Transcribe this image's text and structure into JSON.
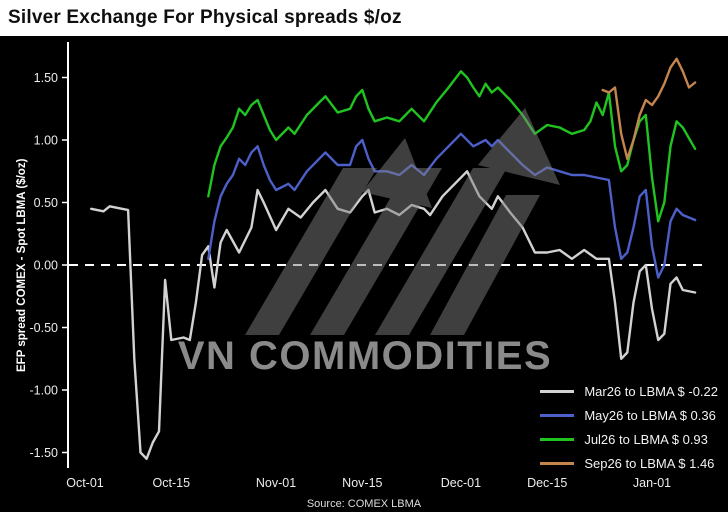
{
  "source": "Source: COMEX LBMA",
  "watermark": "VN COMMODITIES",
  "chart_data": {
    "type": "line",
    "title": "Silver Exchange For Physical spreads $/oz",
    "ylabel": "EFP spread COMEX - Spot LBMA ($/oz)",
    "xlabel": "",
    "ylim": [
      -1.65,
      1.75
    ],
    "grid": false,
    "background": "#000000",
    "zero_line_dashed": true,
    "legend_position": "lower right",
    "x_unit": "days since Oct-01",
    "y_ticks": [
      {
        "label": "1.50",
        "value": 1.5
      },
      {
        "label": "1.00",
        "value": 1.0
      },
      {
        "label": "0.50",
        "value": 0.5
      },
      {
        "label": "0.00",
        "value": 0.0
      },
      {
        "label": "-0.50",
        "value": -0.5
      },
      {
        "label": "-1.00",
        "value": -1.0
      },
      {
        "label": "-1.50",
        "value": -1.5
      }
    ],
    "x_ticks": [
      {
        "label": "Oct-01",
        "day": 0
      },
      {
        "label": "Oct-15",
        "day": 14
      },
      {
        "label": "Nov-01",
        "day": 31
      },
      {
        "label": "Nov-15",
        "day": 45
      },
      {
        "label": "Dec-01",
        "day": 61
      },
      {
        "label": "Dec-15",
        "day": 75
      },
      {
        "label": "Jan-01",
        "day": 92
      }
    ],
    "series": [
      {
        "name": "Mar26",
        "legend_label": "Mar26 to LBMA $ -0.22",
        "last_value": -0.22,
        "color": "#d2d2d2",
        "points": [
          [
            1,
            0.45
          ],
          [
            3,
            0.43
          ],
          [
            4,
            0.47
          ],
          [
            6,
            0.45
          ],
          [
            7,
            0.44
          ],
          [
            8,
            -0.75
          ],
          [
            9,
            -1.5
          ],
          [
            10,
            -1.55
          ],
          [
            11,
            -1.42
          ],
          [
            12,
            -1.33
          ],
          [
            13,
            -0.12
          ],
          [
            14,
            -0.6
          ],
          [
            16,
            -0.58
          ],
          [
            17,
            -0.6
          ],
          [
            18,
            -0.3
          ],
          [
            19,
            0.08
          ],
          [
            20,
            0.15
          ],
          [
            21,
            -0.18
          ],
          [
            22,
            0.18
          ],
          [
            23,
            0.28
          ],
          [
            25,
            0.1
          ],
          [
            27,
            0.3
          ],
          [
            28,
            0.6
          ],
          [
            29,
            0.5
          ],
          [
            31,
            0.28
          ],
          [
            33,
            0.45
          ],
          [
            35,
            0.38
          ],
          [
            37,
            0.5
          ],
          [
            39,
            0.6
          ],
          [
            41,
            0.45
          ],
          [
            43,
            0.42
          ],
          [
            45,
            0.55
          ],
          [
            46,
            0.6
          ],
          [
            47,
            0.42
          ],
          [
            49,
            0.45
          ],
          [
            51,
            0.4
          ],
          [
            53,
            0.48
          ],
          [
            55,
            0.45
          ],
          [
            56,
            0.4
          ],
          [
            58,
            0.55
          ],
          [
            60,
            0.65
          ],
          [
            62,
            0.75
          ],
          [
            64,
            0.55
          ],
          [
            66,
            0.45
          ],
          [
            67,
            0.55
          ],
          [
            69,
            0.42
          ],
          [
            71,
            0.3
          ],
          [
            73,
            0.1
          ],
          [
            75,
            0.1
          ],
          [
            77,
            0.12
          ],
          [
            79,
            0.05
          ],
          [
            81,
            0.12
          ],
          [
            83,
            0.05
          ],
          [
            85,
            0.05
          ],
          [
            86,
            -0.3
          ],
          [
            87,
            -0.75
          ],
          [
            88,
            -0.7
          ],
          [
            89,
            -0.3
          ],
          [
            90,
            -0.05
          ],
          [
            91,
            0.0
          ],
          [
            92,
            -0.35
          ],
          [
            93,
            -0.6
          ],
          [
            94,
            -0.55
          ],
          [
            95,
            -0.15
          ],
          [
            96,
            -0.1
          ],
          [
            97,
            -0.2
          ],
          [
            99,
            -0.22
          ]
        ]
      },
      {
        "name": "May26",
        "legend_label": "May26 to LBMA $ 0.36",
        "last_value": 0.36,
        "color": "#4d5fc9",
        "points": [
          [
            20,
            0.05
          ],
          [
            21,
            0.35
          ],
          [
            22,
            0.55
          ],
          [
            23,
            0.65
          ],
          [
            24,
            0.72
          ],
          [
            25,
            0.85
          ],
          [
            26,
            0.8
          ],
          [
            27,
            0.9
          ],
          [
            28,
            0.95
          ],
          [
            29,
            0.8
          ],
          [
            30,
            0.68
          ],
          [
            31,
            0.6
          ],
          [
            33,
            0.65
          ],
          [
            34,
            0.6
          ],
          [
            36,
            0.75
          ],
          [
            38,
            0.85
          ],
          [
            39,
            0.9
          ],
          [
            41,
            0.8
          ],
          [
            43,
            0.8
          ],
          [
            44,
            0.95
          ],
          [
            45,
            1.0
          ],
          [
            46,
            0.85
          ],
          [
            47,
            0.75
          ],
          [
            49,
            0.75
          ],
          [
            51,
            0.72
          ],
          [
            53,
            0.8
          ],
          [
            55,
            0.72
          ],
          [
            57,
            0.85
          ],
          [
            59,
            0.95
          ],
          [
            61,
            1.05
          ],
          [
            63,
            0.95
          ],
          [
            65,
            1.0
          ],
          [
            66,
            0.95
          ],
          [
            67,
            1.0
          ],
          [
            69,
            0.9
          ],
          [
            71,
            0.8
          ],
          [
            73,
            0.72
          ],
          [
            75,
            0.78
          ],
          [
            77,
            0.75
          ],
          [
            79,
            0.72
          ],
          [
            81,
            0.72
          ],
          [
            83,
            0.7
          ],
          [
            85,
            0.68
          ],
          [
            86,
            0.3
          ],
          [
            87,
            0.05
          ],
          [
            88,
            0.1
          ],
          [
            89,
            0.3
          ],
          [
            90,
            0.55
          ],
          [
            91,
            0.6
          ],
          [
            92,
            0.15
          ],
          [
            93,
            -0.1
          ],
          [
            94,
            0.0
          ],
          [
            95,
            0.35
          ],
          [
            96,
            0.45
          ],
          [
            97,
            0.4
          ],
          [
            99,
            0.36
          ]
        ]
      },
      {
        "name": "Jul26",
        "legend_label": "Jul26 to LBMA $ 0.93",
        "last_value": 0.93,
        "color": "#20c421",
        "points": [
          [
            20,
            0.55
          ],
          [
            21,
            0.8
          ],
          [
            22,
            0.95
          ],
          [
            23,
            1.02
          ],
          [
            24,
            1.1
          ],
          [
            25,
            1.25
          ],
          [
            26,
            1.2
          ],
          [
            27,
            1.28
          ],
          [
            28,
            1.32
          ],
          [
            29,
            1.2
          ],
          [
            30,
            1.08
          ],
          [
            31,
            1.0
          ],
          [
            33,
            1.1
          ],
          [
            34,
            1.05
          ],
          [
            36,
            1.2
          ],
          [
            38,
            1.3
          ],
          [
            39,
            1.35
          ],
          [
            41,
            1.22
          ],
          [
            43,
            1.25
          ],
          [
            44,
            1.35
          ],
          [
            45,
            1.4
          ],
          [
            46,
            1.25
          ],
          [
            47,
            1.15
          ],
          [
            49,
            1.18
          ],
          [
            51,
            1.15
          ],
          [
            53,
            1.25
          ],
          [
            55,
            1.15
          ],
          [
            57,
            1.3
          ],
          [
            59,
            1.42
          ],
          [
            61,
            1.55
          ],
          [
            62,
            1.5
          ],
          [
            63,
            1.42
          ],
          [
            64,
            1.35
          ],
          [
            65,
            1.45
          ],
          [
            66,
            1.38
          ],
          [
            67,
            1.42
          ],
          [
            69,
            1.32
          ],
          [
            71,
            1.2
          ],
          [
            73,
            1.05
          ],
          [
            75,
            1.12
          ],
          [
            77,
            1.1
          ],
          [
            79,
            1.05
          ],
          [
            81,
            1.08
          ],
          [
            82,
            1.15
          ],
          [
            83,
            1.3
          ],
          [
            84,
            1.2
          ],
          [
            85,
            1.38
          ],
          [
            86,
            0.95
          ],
          [
            87,
            0.75
          ],
          [
            88,
            0.8
          ],
          [
            89,
            1.0
          ],
          [
            90,
            1.15
          ],
          [
            91,
            1.2
          ],
          [
            92,
            0.7
          ],
          [
            93,
            0.35
          ],
          [
            94,
            0.5
          ],
          [
            95,
            0.95
          ],
          [
            96,
            1.15
          ],
          [
            97,
            1.1
          ],
          [
            99,
            0.93
          ]
        ]
      },
      {
        "name": "Sep26",
        "legend_label": "Sep26 to LBMA $ 1.46",
        "last_value": 1.46,
        "color": "#c4854f",
        "points": [
          [
            84,
            1.4
          ],
          [
            85,
            1.38
          ],
          [
            86,
            1.42
          ],
          [
            87,
            1.05
          ],
          [
            88,
            0.85
          ],
          [
            89,
            1.0
          ],
          [
            90,
            1.2
          ],
          [
            91,
            1.32
          ],
          [
            92,
            1.28
          ],
          [
            93,
            1.35
          ],
          [
            94,
            1.45
          ],
          [
            95,
            1.58
          ],
          [
            96,
            1.65
          ],
          [
            97,
            1.55
          ],
          [
            98,
            1.42
          ],
          [
            99,
            1.46
          ]
        ]
      }
    ]
  }
}
